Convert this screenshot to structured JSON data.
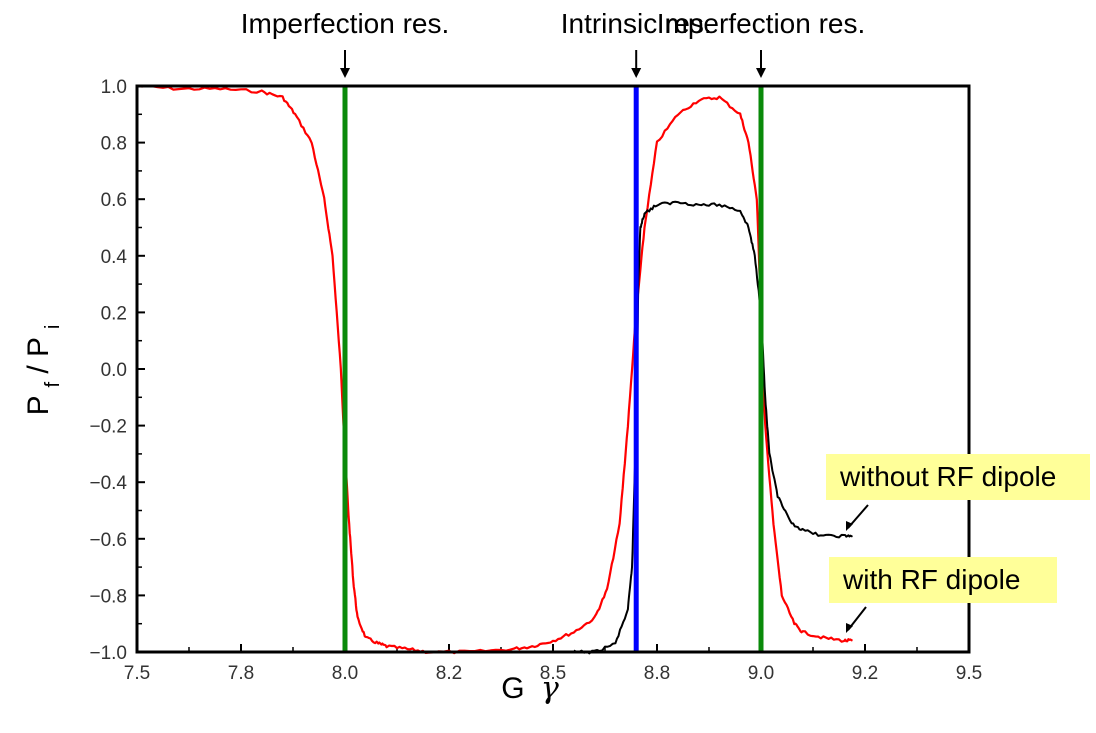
{
  "chart_data": {
    "type": "line",
    "xlabel_main": "G",
    "xlabel_symbol": "γ",
    "ylabel_main": "P",
    "ylabel_sub1": "f",
    "ylabel_sep": " / P",
    "ylabel_sub2": "i",
    "xlim": [
      7.5,
      9.5
    ],
    "ylim": [
      -1.0,
      1.0
    ],
    "xticks": [
      "7.5",
      "7.8",
      "8.0",
      "8.2",
      "8.5",
      "8.8",
      "9.0",
      "9.2",
      "9.5"
    ],
    "yticks": [
      "1.0",
      "0.8",
      "0.6",
      "0.4",
      "0.2",
      "0.0",
      "−0.2",
      "−0.4",
      "−0.6",
      "−0.8",
      "−1.0"
    ],
    "annotations": [
      {
        "label": "Imperfection res.",
        "x": 8.0,
        "color": "#0a8a0a"
      },
      {
        "label": "Intrinsic res.",
        "x": 8.7,
        "color": "#0000ff"
      },
      {
        "label": "Imperfection res.",
        "x": 9.0,
        "color": "#0a8a0a"
      }
    ],
    "series": [
      {
        "name": "with RF dipole",
        "color": "#ff0000",
        "x": [
          7.5,
          7.6,
          7.7,
          7.8,
          7.85,
          7.88,
          7.92,
          7.95,
          7.97,
          7.99,
          8.0,
          8.01,
          8.02,
          8.03,
          8.05,
          8.08,
          8.1,
          8.15,
          8.2,
          8.3,
          8.4,
          8.45,
          8.5,
          8.55,
          8.6,
          8.63,
          8.66,
          8.68,
          8.7,
          8.72,
          8.75,
          8.8,
          8.85,
          8.9,
          8.95,
          8.97,
          8.99,
          9.0,
          9.01,
          9.03,
          9.05,
          9.08,
          9.1,
          9.15,
          9.2,
          9.22
        ],
        "y": [
          1.0,
          0.99,
          0.99,
          0.98,
          0.96,
          0.9,
          0.8,
          0.6,
          0.4,
          0.0,
          -0.3,
          -0.55,
          -0.75,
          -0.88,
          -0.95,
          -0.97,
          -0.98,
          -0.99,
          -1.0,
          -1.0,
          -0.99,
          -0.98,
          -0.96,
          -0.93,
          -0.88,
          -0.78,
          -0.55,
          -0.2,
          0.2,
          0.5,
          0.8,
          0.9,
          0.95,
          0.96,
          0.9,
          0.8,
          0.6,
          0.2,
          -0.2,
          -0.55,
          -0.8,
          -0.9,
          -0.93,
          -0.95,
          -0.96,
          -0.96
        ]
      },
      {
        "name": "without RF dipole",
        "color": "#000000",
        "x": [
          8.55,
          8.6,
          8.65,
          8.68,
          8.69,
          8.7,
          8.705,
          8.71,
          8.72,
          8.75,
          8.8,
          8.85,
          8.9,
          8.95,
          8.97,
          8.985,
          9.0,
          9.01,
          9.02,
          9.04,
          9.07,
          9.1,
          9.15,
          9.2,
          9.22
        ],
        "y": [
          -1.0,
          -1.0,
          -0.97,
          -0.85,
          -0.7,
          -0.2,
          0.3,
          0.5,
          0.55,
          0.58,
          0.59,
          0.58,
          0.58,
          0.56,
          0.5,
          0.4,
          0.2,
          -0.1,
          -0.3,
          -0.45,
          -0.54,
          -0.57,
          -0.59,
          -0.59,
          -0.59
        ]
      }
    ],
    "legend": [
      {
        "label": "without RF dipole",
        "placement": "right-middle",
        "background": "#ffff99"
      },
      {
        "label": "with RF dipole",
        "placement": "right-lower",
        "background": "#ffff99"
      }
    ],
    "grid": false
  }
}
